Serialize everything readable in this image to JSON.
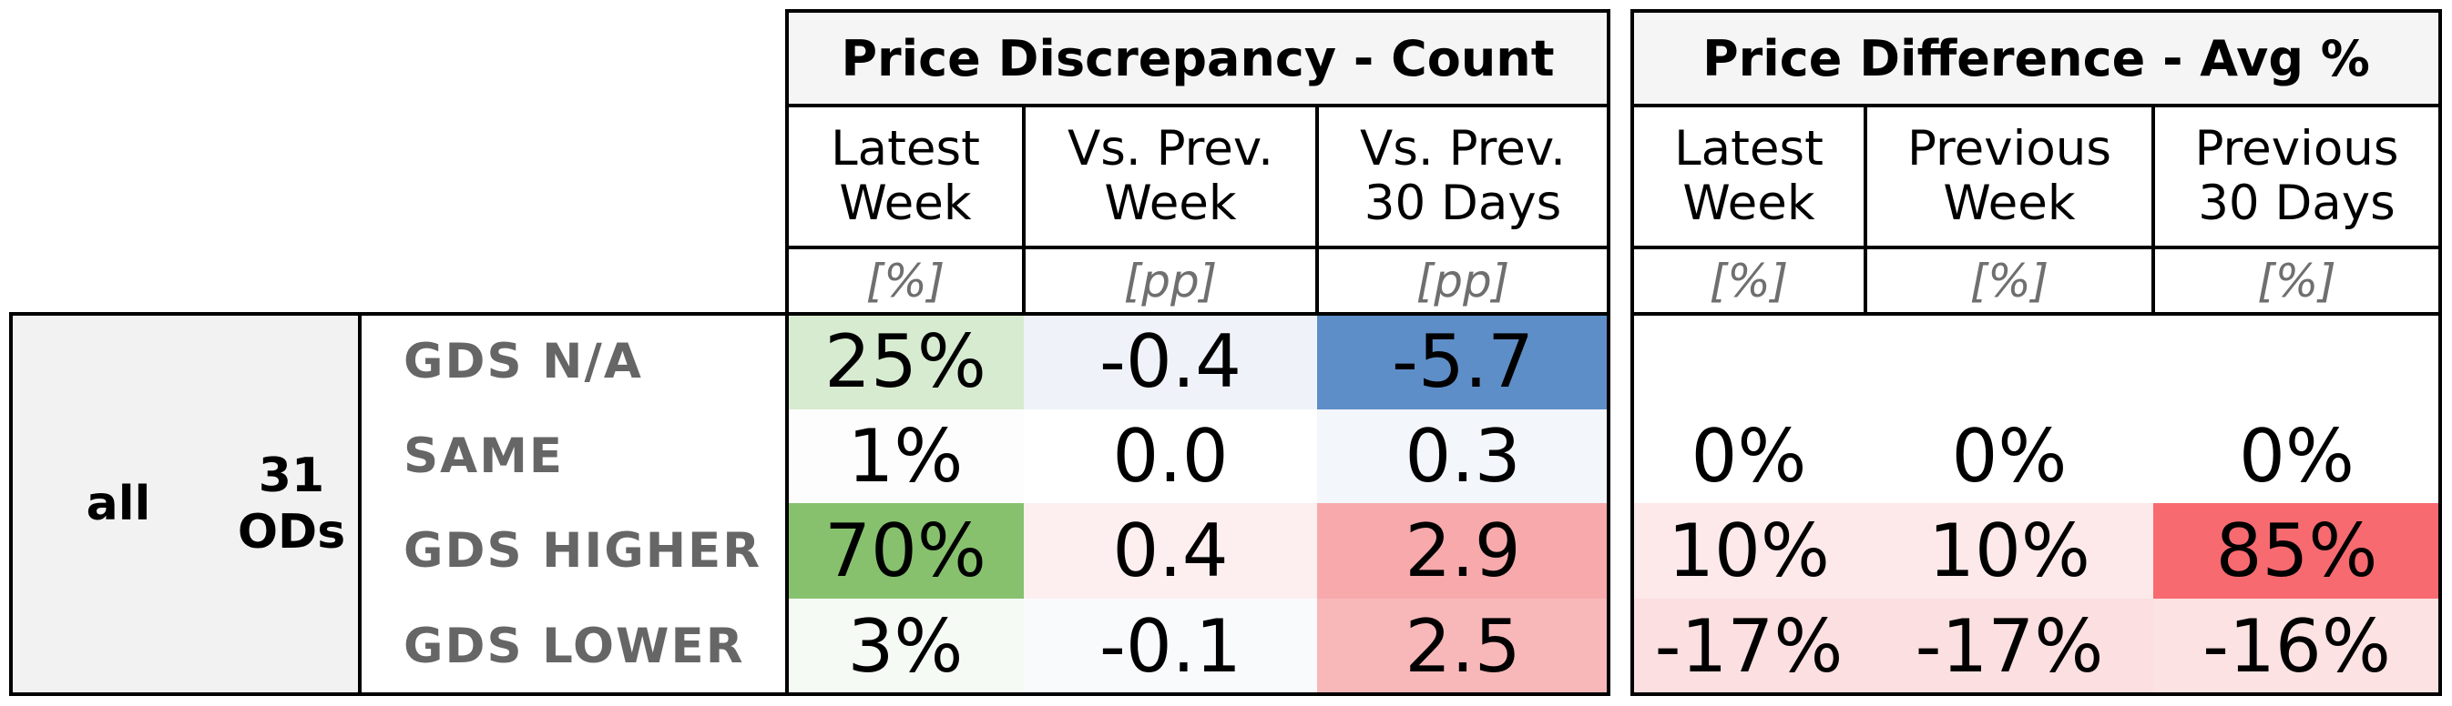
{
  "chart_data": {
    "type": "table",
    "row_group": {
      "segment": "all",
      "count_label": "31\nODs"
    },
    "row_labels": [
      "GDS N/A",
      "SAME",
      "GDS HIGHER",
      "GDS LOWER"
    ],
    "groups": [
      {
        "title": "Price Discrepancy - Count",
        "columns": [
          {
            "header": "Latest\nWeek",
            "unit": "[%]",
            "cells": [
              "25%",
              "1%",
              "70%",
              "3%"
            ],
            "colors": [
              "#d7ebd0",
              "#fcfdfc",
              "#87c16e",
              "#f6faf5"
            ]
          },
          {
            "header": "Vs. Prev.\nWeek",
            "unit": "[pp]",
            "cells": [
              "-0.4",
              "0.0",
              "0.4",
              "-0.1"
            ],
            "colors": [
              "#eff3f9",
              "#ffffff",
              "#fdeff0",
              "#f9fafc"
            ]
          },
          {
            "header": "Vs. Prev.\n30 Days",
            "unit": "[pp]",
            "cells": [
              "-5.7",
              "0.3",
              "2.9",
              "2.5"
            ],
            "colors": [
              "#5e8ec8",
              "#f3f6fa",
              "#f7a9ac",
              "#f8b8ba"
            ]
          }
        ]
      },
      {
        "title": "Price Difference - Avg %",
        "columns": [
          {
            "header": "Latest\nWeek",
            "unit": "[%]",
            "cells": [
              "",
              "0%",
              "10%",
              "-17%"
            ],
            "colors": [
              "#ffffff",
              "#ffffff",
              "#fde9ea",
              "#fcdfe0"
            ]
          },
          {
            "header": "Previous\nWeek",
            "unit": "[%]",
            "cells": [
              "",
              "0%",
              "10%",
              "-17%"
            ],
            "colors": [
              "#ffffff",
              "#ffffff",
              "#fde9ea",
              "#fcdfe0"
            ]
          },
          {
            "header": "Previous\n30 Days",
            "unit": "[%]",
            "cells": [
              "",
              "0%",
              "85%",
              "-16%"
            ],
            "colors": [
              "#ffffff",
              "#ffffff",
              "#f76a70",
              "#fce2e3"
            ]
          }
        ]
      }
    ]
  }
}
